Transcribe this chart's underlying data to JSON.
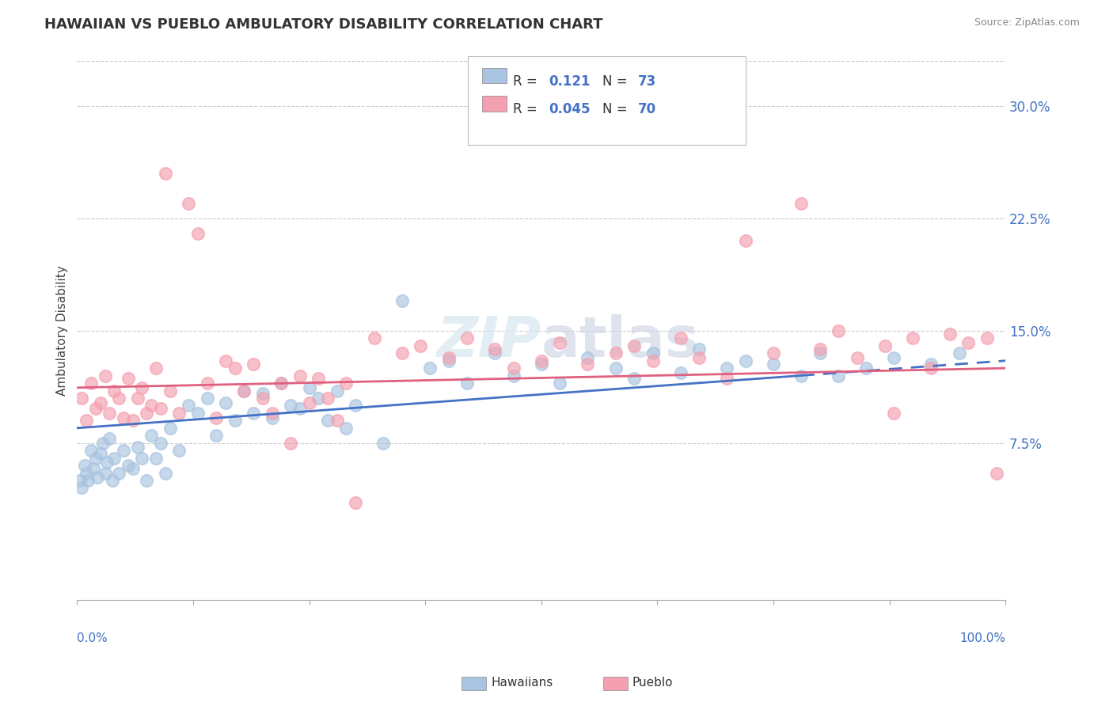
{
  "title": "HAWAIIAN VS PUEBLO AMBULATORY DISABILITY CORRELATION CHART",
  "source": "Source: ZipAtlas.com",
  "ylabel": "Ambulatory Disability",
  "legend_bottom_labels": [
    "Hawaiians",
    "Pueblo"
  ],
  "hawaiian_R": "0.121",
  "hawaiian_N": 73,
  "pueblo_R": "0.045",
  "pueblo_N": 70,
  "xlim": [
    0,
    100
  ],
  "ylim": [
    -3,
    33
  ],
  "yticks": [
    7.5,
    15.0,
    22.5,
    30.0
  ],
  "watermark": "ZIPatlas",
  "hawaiian_color": "#a8c4e0",
  "pueblo_color": "#f4a0b0",
  "hawaiian_line_color": "#4472c4",
  "pueblo_line_color": "#e06080",
  "background_color": "#ffffff",
  "hawaiian_points": [
    [
      0.3,
      5.0
    ],
    [
      0.5,
      4.5
    ],
    [
      0.8,
      6.0
    ],
    [
      1.0,
      5.5
    ],
    [
      1.2,
      5.0
    ],
    [
      1.5,
      7.0
    ],
    [
      1.8,
      5.8
    ],
    [
      2.0,
      6.5
    ],
    [
      2.2,
      5.2
    ],
    [
      2.5,
      6.8
    ],
    [
      2.8,
      7.5
    ],
    [
      3.0,
      5.5
    ],
    [
      3.2,
      6.2
    ],
    [
      3.5,
      7.8
    ],
    [
      3.8,
      5.0
    ],
    [
      4.0,
      6.5
    ],
    [
      4.5,
      5.5
    ],
    [
      5.0,
      7.0
    ],
    [
      5.5,
      6.0
    ],
    [
      6.0,
      5.8
    ],
    [
      6.5,
      7.2
    ],
    [
      7.0,
      6.5
    ],
    [
      7.5,
      5.0
    ],
    [
      8.0,
      8.0
    ],
    [
      8.5,
      6.5
    ],
    [
      9.0,
      7.5
    ],
    [
      9.5,
      5.5
    ],
    [
      10.0,
      8.5
    ],
    [
      11.0,
      7.0
    ],
    [
      12.0,
      10.0
    ],
    [
      13.0,
      9.5
    ],
    [
      14.0,
      10.5
    ],
    [
      15.0,
      8.0
    ],
    [
      16.0,
      10.2
    ],
    [
      17.0,
      9.0
    ],
    [
      18.0,
      11.0
    ],
    [
      19.0,
      9.5
    ],
    [
      20.0,
      10.8
    ],
    [
      21.0,
      9.2
    ],
    [
      22.0,
      11.5
    ],
    [
      23.0,
      10.0
    ],
    [
      24.0,
      9.8
    ],
    [
      25.0,
      11.2
    ],
    [
      26.0,
      10.5
    ],
    [
      27.0,
      9.0
    ],
    [
      28.0,
      11.0
    ],
    [
      29.0,
      8.5
    ],
    [
      30.0,
      10.0
    ],
    [
      33.0,
      7.5
    ],
    [
      35.0,
      17.0
    ],
    [
      38.0,
      12.5
    ],
    [
      40.0,
      13.0
    ],
    [
      42.0,
      11.5
    ],
    [
      45.0,
      13.5
    ],
    [
      47.0,
      12.0
    ],
    [
      50.0,
      12.8
    ],
    [
      52.0,
      11.5
    ],
    [
      55.0,
      13.2
    ],
    [
      58.0,
      12.5
    ],
    [
      60.0,
      11.8
    ],
    [
      62.0,
      13.5
    ],
    [
      65.0,
      12.2
    ],
    [
      67.0,
      13.8
    ],
    [
      70.0,
      12.5
    ],
    [
      72.0,
      13.0
    ],
    [
      75.0,
      12.8
    ],
    [
      78.0,
      12.0
    ],
    [
      80.0,
      13.5
    ],
    [
      82.0,
      12.0
    ],
    [
      85.0,
      12.5
    ],
    [
      88.0,
      13.2
    ],
    [
      92.0,
      12.8
    ],
    [
      95.0,
      13.5
    ]
  ],
  "pueblo_points": [
    [
      0.5,
      10.5
    ],
    [
      1.0,
      9.0
    ],
    [
      1.5,
      11.5
    ],
    [
      2.0,
      9.8
    ],
    [
      2.5,
      10.2
    ],
    [
      3.0,
      12.0
    ],
    [
      3.5,
      9.5
    ],
    [
      4.0,
      11.0
    ],
    [
      4.5,
      10.5
    ],
    [
      5.0,
      9.2
    ],
    [
      5.5,
      11.8
    ],
    [
      6.0,
      9.0
    ],
    [
      6.5,
      10.5
    ],
    [
      7.0,
      11.2
    ],
    [
      7.5,
      9.5
    ],
    [
      8.0,
      10.0
    ],
    [
      8.5,
      12.5
    ],
    [
      9.0,
      9.8
    ],
    [
      9.5,
      25.5
    ],
    [
      10.0,
      11.0
    ],
    [
      11.0,
      9.5
    ],
    [
      12.0,
      23.5
    ],
    [
      13.0,
      21.5
    ],
    [
      14.0,
      11.5
    ],
    [
      15.0,
      9.2
    ],
    [
      16.0,
      13.0
    ],
    [
      17.0,
      12.5
    ],
    [
      18.0,
      11.0
    ],
    [
      19.0,
      12.8
    ],
    [
      20.0,
      10.5
    ],
    [
      21.0,
      9.5
    ],
    [
      22.0,
      11.5
    ],
    [
      23.0,
      7.5
    ],
    [
      24.0,
      12.0
    ],
    [
      25.0,
      10.2
    ],
    [
      26.0,
      11.8
    ],
    [
      27.0,
      10.5
    ],
    [
      28.0,
      9.0
    ],
    [
      29.0,
      11.5
    ],
    [
      30.0,
      3.5
    ],
    [
      32.0,
      14.5
    ],
    [
      35.0,
      13.5
    ],
    [
      37.0,
      14.0
    ],
    [
      40.0,
      13.2
    ],
    [
      42.0,
      14.5
    ],
    [
      45.0,
      13.8
    ],
    [
      47.0,
      12.5
    ],
    [
      50.0,
      13.0
    ],
    [
      52.0,
      14.2
    ],
    [
      55.0,
      12.8
    ],
    [
      58.0,
      13.5
    ],
    [
      60.0,
      14.0
    ],
    [
      62.0,
      13.0
    ],
    [
      65.0,
      14.5
    ],
    [
      67.0,
      13.2
    ],
    [
      70.0,
      11.8
    ],
    [
      72.0,
      21.0
    ],
    [
      75.0,
      13.5
    ],
    [
      78.0,
      23.5
    ],
    [
      80.0,
      13.8
    ],
    [
      82.0,
      15.0
    ],
    [
      84.0,
      13.2
    ],
    [
      87.0,
      14.0
    ],
    [
      88.0,
      9.5
    ],
    [
      90.0,
      14.5
    ],
    [
      92.0,
      12.5
    ],
    [
      94.0,
      14.8
    ],
    [
      96.0,
      14.2
    ],
    [
      98.0,
      14.5
    ],
    [
      99.0,
      5.5
    ]
  ],
  "pueblo_trend_start_y": 11.2,
  "pueblo_trend_end_y": 12.5,
  "hawaiian_solid_end_x": 78,
  "hawaiian_trend_start_y": 8.5,
  "hawaiian_trend_end_y": 13.0
}
